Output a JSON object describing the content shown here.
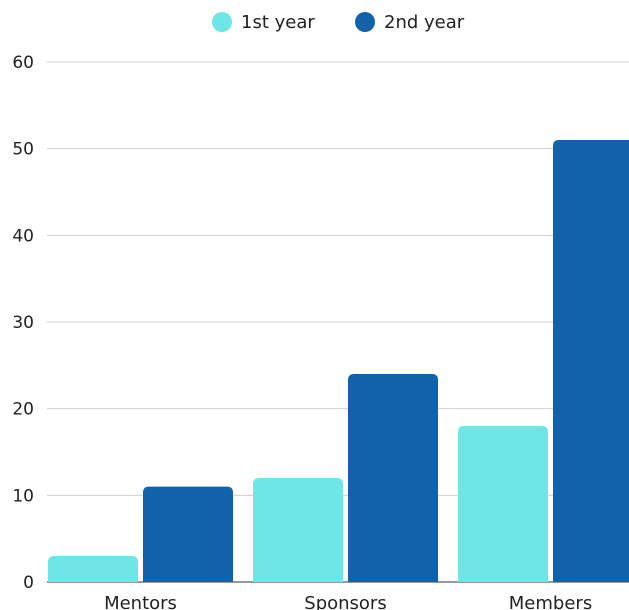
{
  "chart_data": {
    "type": "bar",
    "categories": [
      "Mentors",
      "Sponsors",
      "Members"
    ],
    "series": [
      {
        "name": "1st year",
        "values": [
          3,
          12,
          18
        ],
        "color": "#6ee6e8"
      },
      {
        "name": "2nd year",
        "values": [
          11,
          24,
          51
        ],
        "color": "#1162a8"
      }
    ],
    "ylim": [
      0,
      60
    ],
    "yticks": [
      "0",
      "10",
      "20",
      "30",
      "40",
      "50",
      "60"
    ],
    "grid": true,
    "legend_position": "top-center"
  }
}
